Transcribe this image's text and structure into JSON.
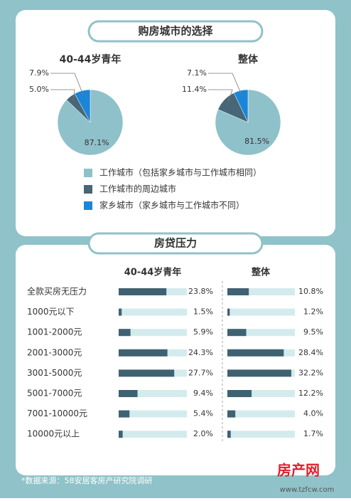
{
  "chart_data": [
    {
      "type": "pie",
      "title": "购房城市的选择",
      "categories": [
        "工作城市（包括家乡城市与工作城市相同）",
        "工作城市的周边城市",
        "家乡城市（家乡城市与工作城市不同）"
      ],
      "colors": [
        "#8fc1ca",
        "#476677",
        "#1b86d8"
      ],
      "series": [
        {
          "name": "40-44岁青年",
          "values": [
            87.1,
            5.0,
            7.9
          ],
          "value_labels": [
            "87.1%",
            "5.0%",
            "7.9%"
          ]
        },
        {
          "name": "整体",
          "values": [
            81.5,
            11.4,
            7.1
          ],
          "value_labels": [
            "81.5%",
            "11.4%",
            "7.1%"
          ]
        }
      ]
    },
    {
      "type": "hbar",
      "title": "房贷压力",
      "categories": [
        "全款买房无压力",
        "1000元以下",
        "1001-2000元",
        "2001-3000元",
        "3001-5000元",
        "5001-7000元",
        "7001-10000元",
        "10000元以上"
      ],
      "xlim": [
        0,
        34
      ],
      "color": "#3f6273",
      "track_color": "#d4ebee",
      "series": [
        {
          "name": "40-44岁青年",
          "values": [
            23.8,
            1.5,
            5.9,
            24.3,
            27.7,
            9.4,
            5.4,
            2.0
          ],
          "value_labels": [
            "23.8%",
            "1.5%",
            "5.9%",
            "24.3%",
            "27.7%",
            "9.4%",
            "5.4%",
            "2.0%"
          ]
        },
        {
          "name": "整体",
          "values": [
            10.8,
            1.2,
            9.5,
            28.4,
            32.2,
            12.2,
            4.0,
            1.7
          ],
          "value_labels": [
            "10.8%",
            "1.2%",
            "9.5%",
            "28.4%",
            "32.2%",
            "12.2%",
            "4.0%",
            "1.7%"
          ]
        }
      ],
      "source": "*数据来源：58安居客房产研究院调研"
    }
  ],
  "watermark": {
    "brand": "房产网",
    "url": "www.tzfcw.com"
  }
}
